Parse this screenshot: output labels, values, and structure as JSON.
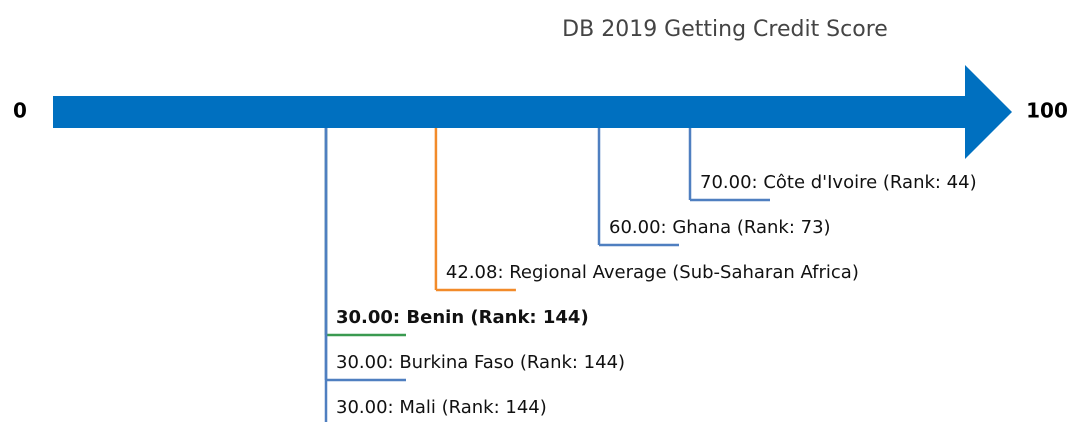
{
  "chart_data": {
    "type": "number-line",
    "title": "DB 2019 Getting Credit Score",
    "xlim": [
      0,
      100
    ],
    "xticks": [
      0,
      100
    ],
    "values": [
      70,
      60,
      42.08,
      30,
      30,
      30
    ],
    "value_labels": [
      "70.00: Côte d'Ivoire (Rank: 44)",
      "60.00: Ghana (Rank: 73)",
      "42.08: Regional Average (Sub-Saharan Africa)",
      "30.00: Benin (Rank: 144)",
      "30.00: Burkina Faso (Rank: 144)",
      "30.00: Mali (Rank: 144)"
    ],
    "colors": [
      "#4f7fc0",
      "#4f7fc0",
      "#f28b2a",
      "#3a9a50",
      "#4f7fc0",
      "#4f7fc0"
    ],
    "highlight": [
      false,
      false,
      false,
      true,
      false,
      false
    ],
    "axis_color": "#0070c0"
  }
}
